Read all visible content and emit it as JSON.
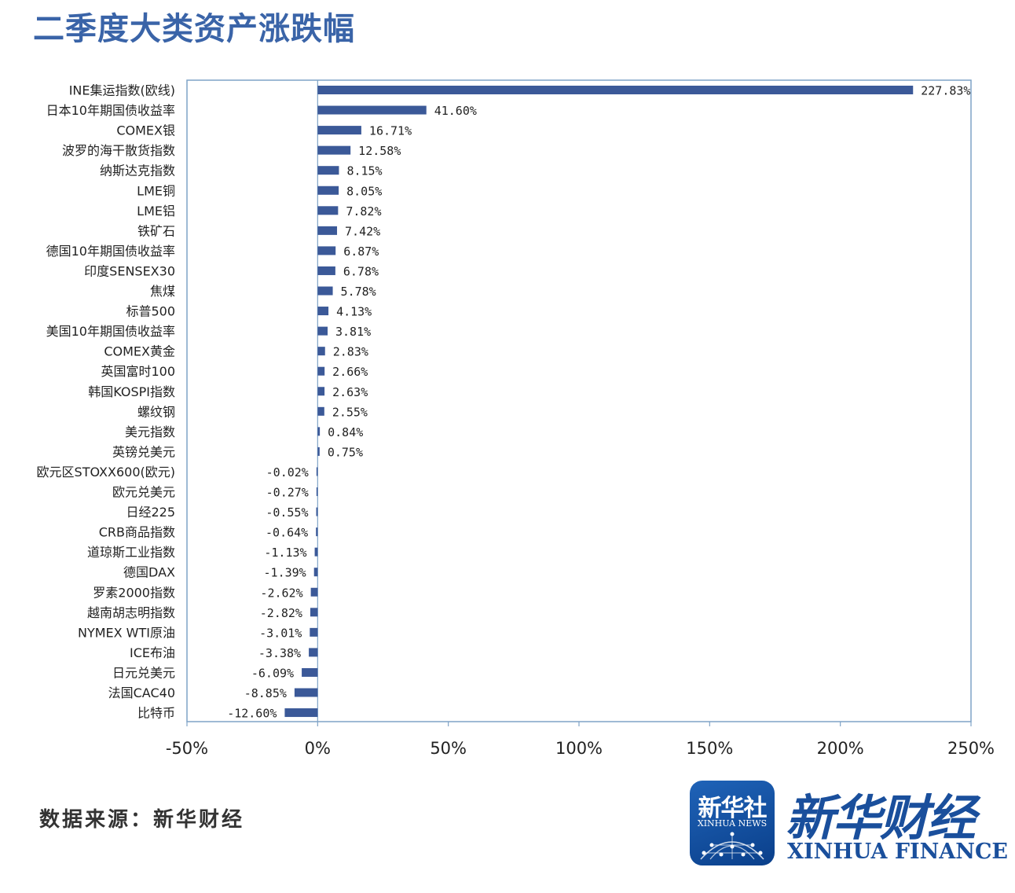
{
  "title": "二季度大类资产涨跌幅",
  "source": "数据来源：新华财经",
  "logo": {
    "badge_cn": "新华社",
    "badge_en": "XINHUA NEWS",
    "brand_cn": "新华财经",
    "brand_en": "XINHUA FINANCE"
  },
  "colors": {
    "bar": "#3b5998",
    "frame": "#7fa3c7",
    "title": "#3a64a8"
  },
  "chart_data": {
    "type": "bar",
    "orientation": "horizontal",
    "xlim": [
      -50,
      250
    ],
    "xticks": [
      "-50%",
      "0%",
      "50%",
      "100%",
      "150%",
      "200%",
      "250%"
    ],
    "xtick_values": [
      -50,
      0,
      50,
      100,
      150,
      200,
      250
    ],
    "categories": [
      "INE集运指数(欧线)",
      "日本10年期国债收益率",
      "COMEX银",
      "波罗的海干散货指数",
      "纳斯达克指数",
      "LME铜",
      "LME铝",
      "铁矿石",
      "德国10年期国债收益率",
      "印度SENSEX30",
      "焦煤",
      "标普500",
      "美国10年期国债收益率",
      "COMEX黄金",
      "英国富时100",
      "韩国KOSPI指数",
      "螺纹钢",
      "美元指数",
      "英镑兑美元",
      "欧元区STOXX600(欧元)",
      "欧元兑美元",
      "日经225",
      "CRB商品指数",
      "道琼斯工业指数",
      "德国DAX",
      "罗素2000指数",
      "越南胡志明指数",
      "NYMEX WTI原油",
      "ICE布油",
      "日元兑美元",
      "法国CAC40",
      "比特币"
    ],
    "values": [
      227.83,
      41.6,
      16.71,
      12.58,
      8.15,
      8.05,
      7.82,
      7.42,
      6.87,
      6.78,
      5.78,
      4.13,
      3.81,
      2.83,
      2.66,
      2.63,
      2.55,
      0.84,
      0.75,
      -0.02,
      -0.27,
      -0.55,
      -0.64,
      -1.13,
      -1.39,
      -2.62,
      -2.82,
      -3.01,
      -3.38,
      -6.09,
      -8.85,
      -12.6
    ],
    "labels": [
      "227.83%",
      "41.60%",
      "16.71%",
      "12.58%",
      "8.15%",
      "8.05%",
      "7.82%",
      "7.42%",
      "6.87%",
      "6.78%",
      "5.78%",
      "4.13%",
      "3.81%",
      "2.83%",
      "2.66%",
      "2.63%",
      "2.55%",
      "0.84%",
      "0.75%",
      "-0.02%",
      "-0.27%",
      "-0.55%",
      "-0.64%",
      "-1.13%",
      "-1.39%",
      "-2.62%",
      "-2.82%",
      "-3.01%",
      "-3.38%",
      "-6.09%",
      "-8.85%",
      "-12.60%"
    ],
    "grid": "vertical",
    "legend": "none"
  }
}
